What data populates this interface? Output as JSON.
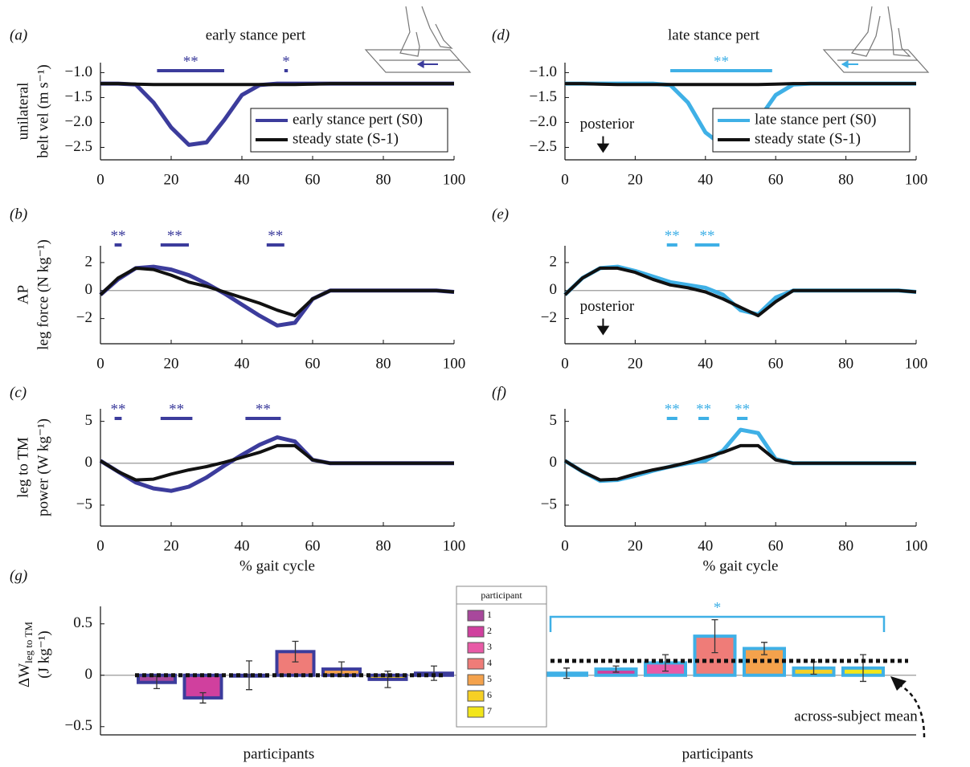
{
  "chart_data": [
    {
      "type": "line",
      "panel": "(a)",
      "title": "early stance pert",
      "ylabel": [
        "unilateral",
        "belt vel (m s⁻¹)"
      ],
      "x": [
        0,
        5,
        10,
        15,
        20,
        25,
        30,
        35,
        40,
        45,
        50,
        55,
        60,
        65,
        70,
        75,
        80,
        85,
        90,
        95,
        100
      ],
      "xlim": [
        0,
        100
      ],
      "xticks": [
        0,
        20,
        40,
        60,
        80,
        100
      ],
      "ylim": [
        -2.75,
        -0.8
      ],
      "yticks": [
        {
          "value": -1,
          "label": "−1.0"
        },
        {
          "value": -1.5,
          "label": "−1.5"
        },
        {
          "value": -2,
          "label": "−2.0"
        },
        {
          "value": -2.5,
          "label": "−2.5"
        }
      ],
      "legend": "lower right",
      "series": [
        {
          "name": "early stance pert (S0)",
          "color": "#3c3c9c",
          "values": [
            -1.22,
            -1.22,
            -1.24,
            -1.6,
            -2.1,
            -2.45,
            -2.4,
            -1.95,
            -1.45,
            -1.25,
            -1.22,
            -1.22,
            -1.22,
            -1.22,
            -1.22,
            -1.22,
            -1.22,
            -1.22,
            -1.22,
            -1.22,
            -1.22
          ]
        },
        {
          "name": "steady state (S-1)",
          "color": "#111111",
          "values": [
            -1.22,
            -1.22,
            -1.23,
            -1.24,
            -1.24,
            -1.24,
            -1.24,
            -1.24,
            -1.24,
            -1.24,
            -1.24,
            -1.24,
            -1.23,
            -1.22,
            -1.22,
            -1.22,
            -1.22,
            -1.22,
            -1.22,
            -1.22,
            -1.22
          ]
        }
      ],
      "significance": [
        {
          "label": "**",
          "x": [
            16,
            35
          ]
        },
        {
          "label": "*",
          "x": [
            52,
            53
          ]
        }
      ]
    },
    {
      "type": "line",
      "panel": "(b)",
      "ylabel": [
        "AP",
        "leg force (N kg⁻¹)"
      ],
      "x": [
        0,
        5,
        10,
        15,
        20,
        25,
        30,
        35,
        40,
        45,
        50,
        55,
        60,
        65,
        70,
        75,
        80,
        85,
        90,
        95,
        100
      ],
      "xlim": [
        0,
        100
      ],
      "xticks": [
        0,
        20,
        40,
        60,
        80,
        100
      ],
      "ylim": [
        -3.8,
        3.2
      ],
      "yticks": [
        {
          "value": -2,
          "label": "−2"
        },
        0,
        2
      ],
      "zero_line": true,
      "series": [
        {
          "name": "early stance pert (S0)",
          "color": "#3c3c9c",
          "values": [
            -0.3,
            0.8,
            1.6,
            1.7,
            1.5,
            1.1,
            0.5,
            -0.2,
            -1.0,
            -1.8,
            -2.5,
            -2.3,
            -0.6,
            0,
            0,
            0,
            0,
            0,
            0,
            0,
            -0.1
          ]
        },
        {
          "name": "steady state (S-1)",
          "color": "#111111",
          "values": [
            -0.3,
            0.9,
            1.6,
            1.5,
            1.1,
            0.6,
            0.3,
            -0.1,
            -0.5,
            -0.9,
            -1.4,
            -1.8,
            -0.6,
            0,
            0,
            0,
            0,
            0,
            0,
            0,
            -0.1
          ]
        }
      ],
      "significance": [
        {
          "label": "**",
          "x": [
            4,
            6
          ]
        },
        {
          "label": "**",
          "x": [
            17,
            25
          ]
        },
        {
          "label": "**",
          "x": [
            47,
            52
          ]
        }
      ]
    },
    {
      "type": "line",
      "panel": "(c)",
      "ylabel": [
        "leg to TM",
        "power (W kg⁻¹)"
      ],
      "xlabel": "% gait cycle",
      "x": [
        0,
        5,
        10,
        15,
        20,
        25,
        30,
        35,
        40,
        45,
        50,
        55,
        60,
        65,
        70,
        75,
        80,
        85,
        90,
        95,
        100
      ],
      "xlim": [
        0,
        100
      ],
      "xticks": [
        0,
        20,
        40,
        60,
        80,
        100
      ],
      "ylim": [
        -7.5,
        6.5
      ],
      "yticks": [
        {
          "value": -5,
          "label": "−5"
        },
        0,
        5
      ],
      "zero_line": true,
      "series": [
        {
          "name": "early stance pert (S0)",
          "color": "#3c3c9c",
          "values": [
            0.3,
            -1.0,
            -2.3,
            -3.0,
            -3.3,
            -2.8,
            -1.7,
            -0.3,
            1.0,
            2.2,
            3.1,
            2.6,
            0.4,
            0,
            0,
            0,
            0,
            0,
            0,
            0,
            0
          ]
        },
        {
          "name": "steady state (S-1)",
          "color": "#111111",
          "values": [
            0.3,
            -1.0,
            -2.0,
            -1.9,
            -1.3,
            -0.8,
            -0.4,
            0.1,
            0.7,
            1.3,
            2.1,
            2.1,
            0.4,
            0,
            0,
            0,
            0,
            0,
            0,
            0,
            0
          ]
        }
      ],
      "significance": [
        {
          "label": "**",
          "x": [
            4,
            6
          ]
        },
        {
          "label": "**",
          "x": [
            17,
            26
          ]
        },
        {
          "label": "**",
          "x": [
            41,
            51
          ]
        }
      ]
    },
    {
      "type": "line",
      "panel": "(d)",
      "title": "late stance pert",
      "x": [
        0,
        5,
        10,
        15,
        20,
        25,
        30,
        35,
        40,
        45,
        50,
        55,
        60,
        65,
        70,
        75,
        80,
        85,
        90,
        95,
        100
      ],
      "xlim": [
        0,
        100
      ],
      "xticks": [
        0,
        20,
        40,
        60,
        80,
        100
      ],
      "ylim": [
        -2.75,
        -0.8
      ],
      "yticks": [
        {
          "value": -1,
          "label": "−1.0"
        },
        {
          "value": -1.5,
          "label": "−1.5"
        },
        {
          "value": -2,
          "label": "−2.0"
        },
        {
          "value": -2.5,
          "label": "−2.5"
        }
      ],
      "legend": "lower right",
      "series": [
        {
          "name": "late stance pert (S0)",
          "color": "#3fb0e6",
          "values": [
            -1.22,
            -1.22,
            -1.22,
            -1.22,
            -1.22,
            -1.22,
            -1.25,
            -1.6,
            -2.2,
            -2.47,
            -2.38,
            -1.95,
            -1.45,
            -1.24,
            -1.22,
            -1.22,
            -1.22,
            -1.22,
            -1.22,
            -1.22,
            -1.22
          ]
        },
        {
          "name": "steady state (S-1)",
          "color": "#111111",
          "values": [
            -1.22,
            -1.22,
            -1.23,
            -1.24,
            -1.24,
            -1.24,
            -1.24,
            -1.24,
            -1.24,
            -1.24,
            -1.24,
            -1.24,
            -1.23,
            -1.22,
            -1.22,
            -1.22,
            -1.22,
            -1.22,
            -1.22,
            -1.22,
            -1.22
          ]
        }
      ],
      "significance": [
        {
          "label": "**",
          "x": [
            30,
            59
          ]
        }
      ],
      "annotation": {
        "text": "posterior",
        "x": 12,
        "y": -2.05
      }
    },
    {
      "type": "line",
      "panel": "(e)",
      "x": [
        0,
        5,
        10,
        15,
        20,
        25,
        30,
        35,
        40,
        45,
        50,
        55,
        60,
        65,
        70,
        75,
        80,
        85,
        90,
        95,
        100
      ],
      "xlim": [
        0,
        100
      ],
      "xticks": [
        0,
        20,
        40,
        60,
        80,
        100
      ],
      "ylim": [
        -3.8,
        3.2
      ],
      "yticks": [
        {
          "value": -2,
          "label": "−2"
        },
        0,
        2
      ],
      "zero_line": true,
      "series": [
        {
          "name": "late stance pert (S0)",
          "color": "#3fb0e6",
          "values": [
            -0.3,
            0.9,
            1.6,
            1.7,
            1.4,
            1.0,
            0.6,
            0.4,
            0.2,
            -0.3,
            -1.4,
            -1.7,
            -0.5,
            0,
            0,
            0,
            0,
            0,
            0,
            0,
            -0.1
          ]
        },
        {
          "name": "steady state (S-1)",
          "color": "#111111",
          "values": [
            -0.3,
            0.9,
            1.6,
            1.6,
            1.3,
            0.8,
            0.4,
            0.2,
            -0.1,
            -0.6,
            -1.2,
            -1.8,
            -0.8,
            0,
            0,
            0,
            0,
            0,
            0,
            0,
            -0.1
          ]
        }
      ],
      "significance": [
        {
          "label": "**",
          "x": [
            29,
            32
          ]
        },
        {
          "label": "**",
          "x": [
            37,
            44
          ]
        }
      ],
      "annotation": {
        "text": "posterior",
        "x": 12,
        "y": -1.2
      }
    },
    {
      "type": "line",
      "panel": "(f)",
      "xlabel": "% gait cycle",
      "x": [
        0,
        5,
        10,
        15,
        20,
        25,
        30,
        35,
        40,
        45,
        50,
        55,
        60,
        65,
        70,
        75,
        80,
        85,
        90,
        95,
        100
      ],
      "xlim": [
        0,
        100
      ],
      "xticks": [
        0,
        20,
        40,
        60,
        80,
        100
      ],
      "ylim": [
        -7.5,
        6.5
      ],
      "yticks": [
        {
          "value": -5,
          "label": "−5"
        },
        0,
        5
      ],
      "zero_line": true,
      "series": [
        {
          "name": "late stance pert (S0)",
          "color": "#3fb0e6",
          "values": [
            0.3,
            -1.0,
            -2.1,
            -2.0,
            -1.5,
            -0.9,
            -0.4,
            0.0,
            0.3,
            1.5,
            4.0,
            3.6,
            0.5,
            0,
            0,
            0,
            0,
            0,
            0,
            0,
            0
          ]
        },
        {
          "name": "steady state (S-1)",
          "color": "#111111",
          "values": [
            0.3,
            -1.0,
            -2.0,
            -1.9,
            -1.3,
            -0.8,
            -0.4,
            0.1,
            0.7,
            1.3,
            2.1,
            2.1,
            0.4,
            0,
            0,
            0,
            0,
            0,
            0,
            0,
            0
          ]
        }
      ],
      "significance": [
        {
          "label": "**",
          "x": [
            29,
            32
          ]
        },
        {
          "label": "**",
          "x": [
            38,
            41
          ]
        },
        {
          "label": "**",
          "x": [
            49,
            52
          ]
        }
      ]
    },
    {
      "type": "bar",
      "panel": "(g)",
      "ylabel": {
        "main": "ΔW",
        "sub": "leg to TM",
        "unit": "(J kg⁻¹)"
      },
      "ylim": [
        -0.58,
        0.67
      ],
      "yticks": [
        {
          "value": -0.5,
          "label": "−0.5"
        },
        0,
        0.5
      ],
      "zero_line": true,
      "legend_title": "participant",
      "categories": [
        "1",
        "2",
        "3",
        "4",
        "5",
        "6",
        "7"
      ],
      "colors": [
        "#a8489c",
        "#d0409e",
        "#e85aa6",
        "#ef7c78",
        "#f4a24c",
        "#f6d024",
        "#f2e61a"
      ],
      "groups": [
        {
          "xlabel": "participants",
          "edgecolor": "#3c3c9c",
          "values": [
            -0.07,
            -0.22,
            0.0,
            0.23,
            0.06,
            -0.04,
            0.02
          ],
          "errors": [
            0.06,
            0.05,
            0.14,
            0.1,
            0.07,
            0.08,
            0.07
          ],
          "mean": 0.0
        },
        {
          "xlabel": "participants",
          "edgecolor": "#3fb0e6",
          "values": [
            0.02,
            0.06,
            0.12,
            0.38,
            0.26,
            0.07,
            0.07
          ],
          "errors": [
            0.05,
            0.03,
            0.08,
            0.16,
            0.06,
            0.06,
            0.13
          ],
          "mean": 0.14,
          "significance": "*"
        }
      ],
      "annotation": "across-subject mean"
    }
  ]
}
